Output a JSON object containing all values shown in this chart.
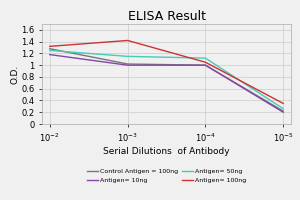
{
  "title": "ELISA Result",
  "ylabel": "O.D.",
  "xlabel": "Serial Dilutions  of Antibody",
  "x_positions": [
    0,
    1,
    2,
    3
  ],
  "x_labels": [
    "10^{-2}",
    "10^{-3}",
    "10^{-4}",
    "10^{-5}"
  ],
  "ylim": [
    0,
    1.7
  ],
  "yticks": [
    0,
    0.2,
    0.4,
    0.6,
    0.8,
    1.0,
    1.2,
    1.4,
    1.6
  ],
  "lines": [
    {
      "label": "Control Antigen = 100ng",
      "color": "#777777",
      "y": [
        1.28,
        1.02,
        1.0,
        0.22
      ]
    },
    {
      "label": "Antigen= 10ng",
      "color": "#8844aa",
      "y": [
        1.18,
        1.0,
        1.0,
        0.2
      ]
    },
    {
      "label": "Antigen= 50ng",
      "color": "#44ccbb",
      "y": [
        1.25,
        1.15,
        1.12,
        0.26
      ]
    },
    {
      "label": "Antigen= 100ng",
      "color": "#cc3333",
      "y": [
        1.32,
        1.42,
        1.05,
        0.35
      ]
    }
  ],
  "background_color": "#f0f0f0",
  "grid_color": "#cccccc",
  "title_fontsize": 9,
  "axis_label_fontsize": 6.5,
  "tick_fontsize": 6,
  "legend_fontsize": 4.5
}
